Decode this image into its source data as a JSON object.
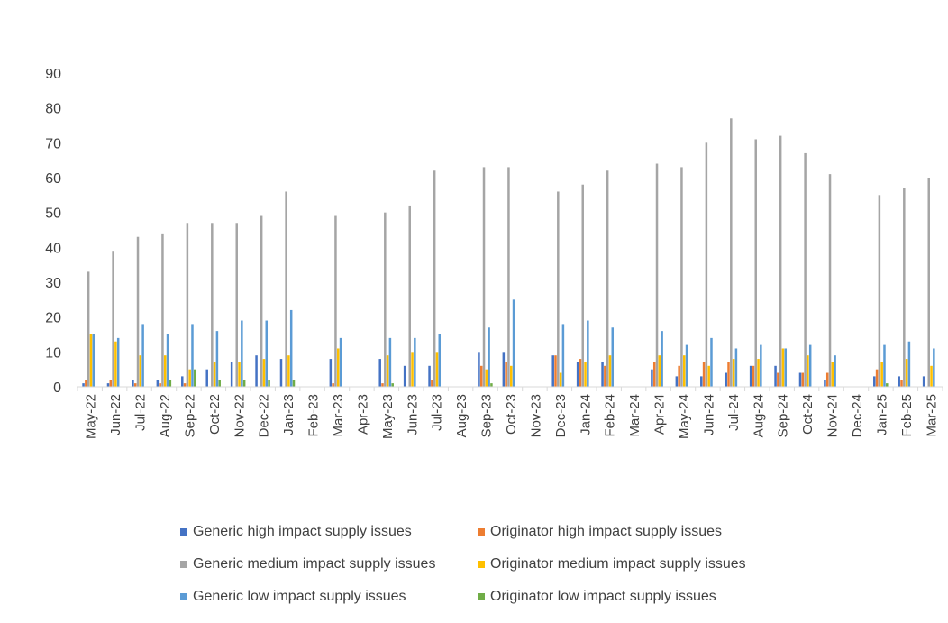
{
  "chart_data": {
    "type": "bar",
    "ylim": [
      0,
      90
    ],
    "yticks": [
      0,
      10,
      20,
      30,
      40,
      50,
      60,
      70,
      80,
      90
    ],
    "categories": [
      "May-22",
      "Jun-22",
      "Jul-22",
      "Aug-22",
      "Sep-22",
      "Oct-22",
      "Nov-22",
      "Dec-22",
      "Jan-23",
      "Feb-23",
      "Mar-23",
      "Apr-23",
      "May-23",
      "Jun-23",
      "Jul-23",
      "Aug-23",
      "Sep-23",
      "Oct-23",
      "Nov-23",
      "Dec-23",
      "Jan-24",
      "Feb-24",
      "Mar-24",
      "Apr-24",
      "May-24",
      "Jun-24",
      "Jul-24",
      "Aug-24",
      "Sep-24",
      "Oct-24",
      "Nov-24",
      "Dec-24",
      "Jan-25",
      "Feb-25",
      "Mar-25"
    ],
    "grid": false,
    "legend_position": "bottom",
    "series": [
      {
        "name": "Generic high impact supply issues",
        "color": "#4472C4",
        "values": [
          1,
          1,
          2,
          2,
          3,
          5,
          7,
          9,
          8,
          0,
          8,
          0,
          8,
          6,
          6,
          0,
          10,
          10,
          0,
          9,
          7,
          7,
          0,
          5,
          3,
          3,
          4,
          6,
          6,
          4,
          2,
          0,
          3,
          3,
          3
        ]
      },
      {
        "name": "Originator high impact supply issues",
        "color": "#ED7D31",
        "values": [
          2,
          2,
          1,
          1,
          1,
          0,
          0,
          0,
          0,
          0,
          1,
          0,
          1,
          0,
          2,
          0,
          6,
          7,
          0,
          9,
          8,
          6,
          0,
          7,
          6,
          7,
          7,
          6,
          4,
          4,
          4,
          0,
          5,
          2,
          0
        ]
      },
      {
        "name": "Generic medium impact supply issues",
        "color": "#A5A5A5",
        "values": [
          33,
          39,
          43,
          44,
          47,
          47,
          47,
          49,
          56,
          0,
          49,
          0,
          50,
          52,
          62,
          0,
          63,
          63,
          0,
          56,
          58,
          62,
          0,
          64,
          63,
          70,
          77,
          71,
          72,
          67,
          61,
          0,
          55,
          57,
          60
        ]
      },
      {
        "name": "Originator medium impact supply issues",
        "color": "#FFC000",
        "values": [
          15,
          13,
          9,
          9,
          5,
          7,
          7,
          8,
          9,
          0,
          11,
          0,
          9,
          10,
          10,
          0,
          5,
          6,
          0,
          4,
          7,
          9,
          0,
          9,
          9,
          6,
          8,
          8,
          11,
          9,
          7,
          0,
          7,
          8,
          6
        ]
      },
      {
        "name": "Generic low impact supply issues",
        "color": "#5B9BD5",
        "values": [
          15,
          14,
          18,
          15,
          18,
          16,
          19,
          19,
          22,
          0,
          14,
          0,
          14,
          14,
          15,
          0,
          17,
          25,
          0,
          18,
          19,
          17,
          0,
          16,
          12,
          14,
          11,
          12,
          11,
          12,
          9,
          0,
          12,
          13,
          11
        ]
      },
      {
        "name": "Originator low impact supply issues",
        "color": "#70AD47",
        "values": [
          0,
          0,
          0,
          2,
          5,
          2,
          2,
          2,
          2,
          0,
          0,
          0,
          1,
          0,
          0,
          0,
          1,
          0,
          0,
          0,
          0,
          0,
          0,
          0,
          0,
          0,
          0,
          0,
          0,
          0,
          0,
          0,
          1,
          0,
          0
        ]
      }
    ]
  }
}
